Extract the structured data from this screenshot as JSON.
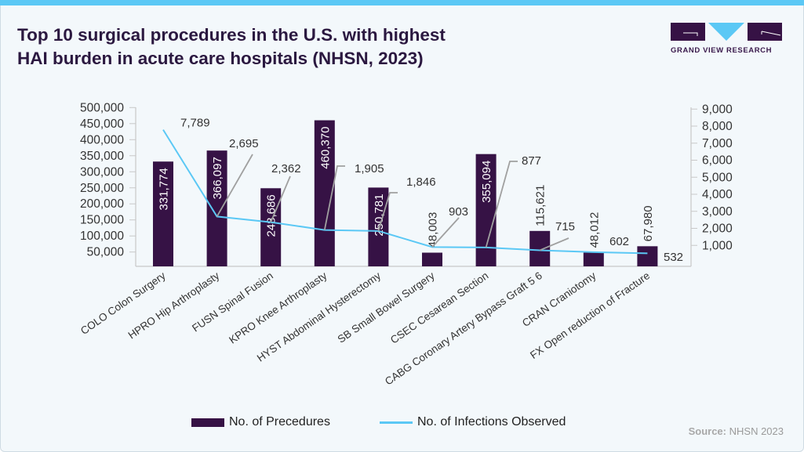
{
  "header": {
    "title_line1": "Top 10 surgical procedures in the U.S. with highest",
    "title_line2": "HAI burden in acute care hospitals (NHSN, 2023)",
    "logo_text": "GRAND VIEW RESEARCH"
  },
  "colors": {
    "bar": "#361245",
    "line": "#5bc8f5",
    "accent": "#5bc8f5",
    "leader": "#a0a0a0"
  },
  "chart_data": {
    "type": "bar+line",
    "title": "Top 10 surgical procedures in the U.S. with highest HAI burden in acute care hospitals (NHSN, 2023)",
    "categories": [
      "COLO Colon Surgery",
      "HPRO Hip Arthroplasty",
      "FUSN Spinal Fusion",
      "KPRO Knee Arthroplasty",
      "HYST Abdominal Hysterectomy",
      "SB Small Bowel Surgery",
      "CSEC Cesarean Section",
      "CABG Coronary Artery Bypass Graft 5 6",
      "CRAN Craniotomy",
      "FX Open reduction of Fracture"
    ],
    "series": [
      {
        "name": "No. of Precedures",
        "type": "bar",
        "axis": "left",
        "values": [
          331774,
          366097,
          248686,
          460370,
          250781,
          48003,
          355094,
          115621,
          48012,
          67980
        ],
        "labels": [
          "331,774",
          "366,097",
          "248,686",
          "460,370",
          "250,781",
          "48,003",
          "355,094",
          "115,621",
          "48,012",
          "67,980"
        ]
      },
      {
        "name": "No. of Infections Observed",
        "type": "line",
        "axis": "right",
        "values": [
          7789,
          2695,
          2362,
          1905,
          1846,
          903,
          877,
          715,
          602,
          532
        ],
        "labels": [
          "7,789",
          "2,695",
          "2,362",
          "1,905",
          "1,846",
          "903",
          "877",
          "715",
          "602",
          "532"
        ]
      }
    ],
    "left_axis": {
      "ylim": [
        0,
        500000
      ],
      "ticks": [
        50000,
        100000,
        150000,
        200000,
        250000,
        300000,
        350000,
        400000,
        450000,
        500000
      ],
      "tick_labels": [
        "50,000",
        "100,000",
        "150,000",
        "200,000",
        "250,000",
        "300,000",
        "350,000",
        "400,000",
        "450,000",
        "500,000"
      ]
    },
    "right_axis": {
      "ylim": [
        0,
        9000
      ],
      "ticks": [
        1000,
        2000,
        3000,
        4000,
        5000,
        6000,
        7000,
        8000,
        9000
      ],
      "tick_labels": [
        "1,000",
        "2,000",
        "3,000",
        "4,000",
        "5,000",
        "6,000",
        "7,000",
        "8,000",
        "9,000"
      ]
    },
    "legend_position": "bottom",
    "grid": false
  },
  "legend": {
    "bar_label": "No. of Precedures",
    "line_label": "No. of Infections Observed"
  },
  "source": {
    "label": "Source:",
    "value": "NHSN 2023"
  }
}
